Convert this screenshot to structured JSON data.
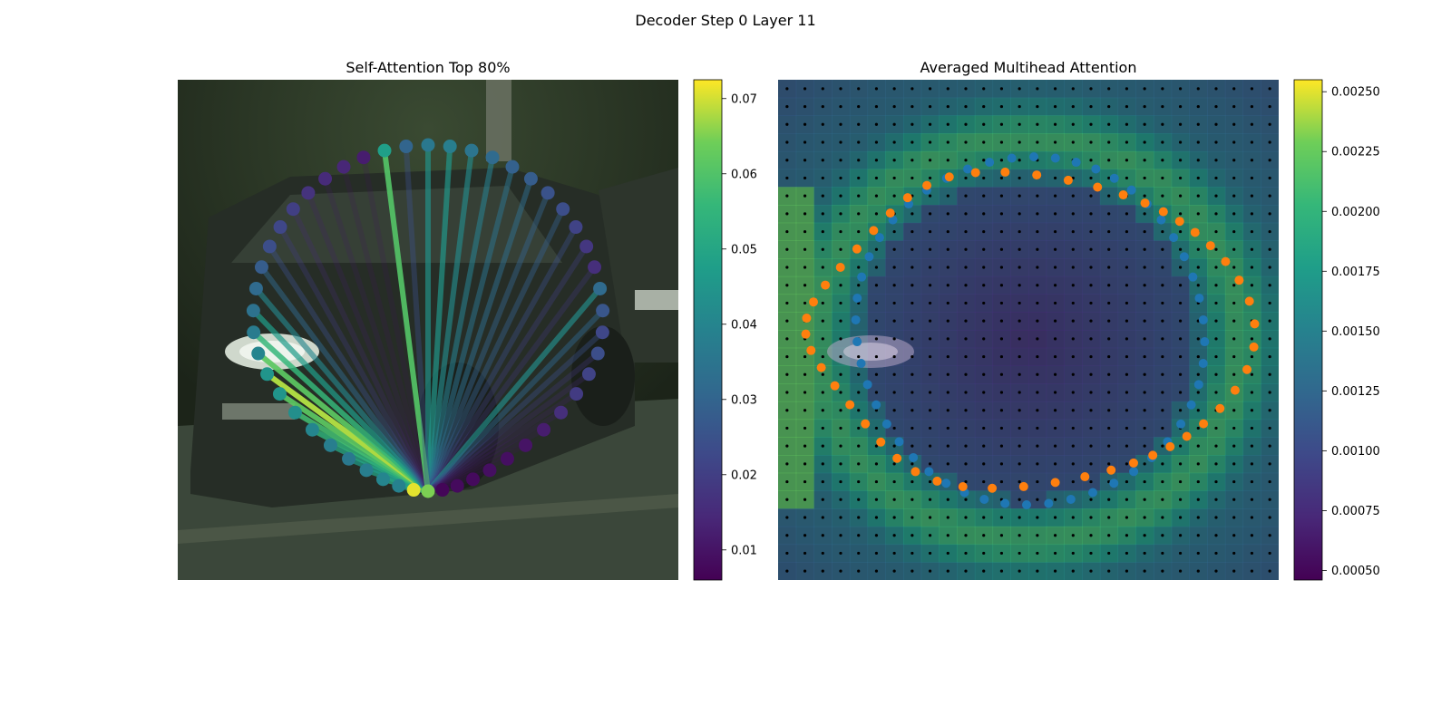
{
  "figure": {
    "suptitle": "Decoder Step 0 Layer 11"
  },
  "chart_data": [
    {
      "type": "scatter",
      "title": "Self-Attention Top 80%",
      "description_kind": "contour-points-with-attention-lines",
      "point_count": 50,
      "query_point_index": 25,
      "point_values": [
        0.036,
        0.038,
        0.035,
        0.032,
        0.029,
        0.028,
        0.025,
        0.024,
        0.021,
        0.018,
        0.016,
        0.032,
        0.026,
        0.022,
        0.024,
        0.021,
        0.019,
        0.016,
        0.012,
        0.01,
        0.009,
        0.009,
        0.008,
        0.008,
        0.007,
        0.065,
        0.071,
        0.039,
        0.04,
        0.038,
        0.036,
        0.038,
        0.04,
        0.043,
        0.045,
        0.045,
        0.04,
        0.037,
        0.034,
        0.032,
        0.028,
        0.024,
        0.022,
        0.02,
        0.017,
        0.015,
        0.014,
        0.012,
        0.048,
        0.03
      ],
      "line_weights": [
        0.62,
        0.64,
        0.58,
        0.52,
        0.46,
        0.44,
        0.38,
        0.36,
        0.3,
        0.24,
        0.2,
        0.6,
        0.4,
        0.3,
        0.2,
        0.15,
        0.12,
        0.1,
        0.08,
        0.06,
        0.05,
        0.05,
        0.05,
        0.05,
        0.05,
        0.95,
        0,
        0.7,
        0.74,
        0.7,
        0.66,
        0.72,
        0.78,
        0.84,
        0.9,
        1.0,
        0.9,
        0.8,
        0.66,
        0.56,
        0.42,
        0.3,
        0.22,
        0.15,
        0.1,
        0.08,
        0.06,
        0.05,
        0.88,
        0.3
      ],
      "colorbar": {
        "min": 0.006,
        "max": 0.0725,
        "ticks": [
          "0.01",
          "0.02",
          "0.03",
          "0.04",
          "0.05",
          "0.06",
          "0.07"
        ],
        "tick_values": [
          0.01,
          0.02,
          0.03,
          0.04,
          0.05,
          0.06,
          0.07
        ]
      },
      "colormap": "viridis"
    },
    {
      "type": "heatmap",
      "title": "Averaged Multihead Attention",
      "grid_size": 28,
      "colorbar": {
        "min": 0.00046,
        "max": 0.00255,
        "ticks": [
          "0.00050",
          "0.00075",
          "0.00100",
          "0.00125",
          "0.00150",
          "0.00175",
          "0.00200",
          "0.00225",
          "0.00250"
        ],
        "tick_values": [
          0.0005,
          0.00075,
          0.001,
          0.00125,
          0.0015,
          0.00175,
          0.002,
          0.00225,
          0.0025
        ]
      },
      "series": [
        {
          "name": "",
          "color": "#1f77b4"
        },
        {
          "name": "",
          "color": "#ff7f0e"
        }
      ],
      "colormap": "viridis"
    }
  ],
  "colors": {
    "photo_dark": "#2a3428",
    "street": "#3c4a3c",
    "grid_dot": "#000000",
    "blue_points": "#1f77b4",
    "orange_points": "#ff7f0e"
  }
}
